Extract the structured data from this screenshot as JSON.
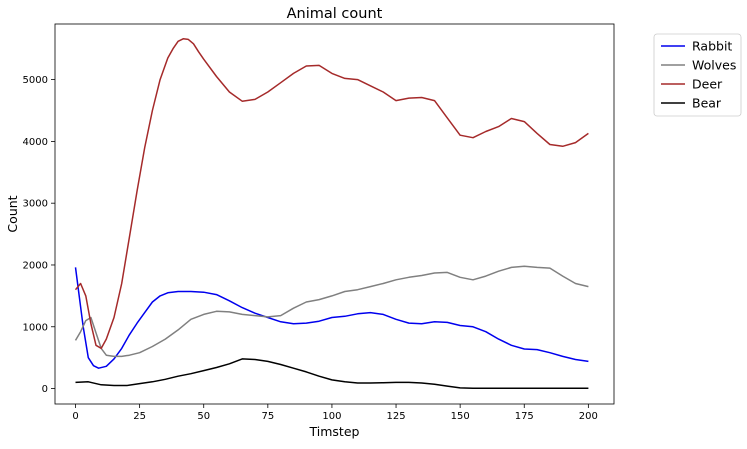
{
  "chart_data": {
    "type": "line",
    "title": "Animal count",
    "xlabel": "Timstep",
    "ylabel": "Count",
    "xlim": [
      -8,
      210
    ],
    "ylim": [
      -250,
      5900
    ],
    "xticks": [
      0,
      25,
      50,
      75,
      100,
      125,
      150,
      175,
      200
    ],
    "xtick_labels": [
      "0",
      "25",
      "50",
      "75",
      "100",
      "125",
      "150",
      "175",
      "200"
    ],
    "yticks": [
      0,
      1000,
      2000,
      3000,
      4000,
      5000
    ],
    "ytick_labels": [
      "0",
      "1000",
      "2000",
      "3000",
      "4000",
      "5000"
    ],
    "grid": false,
    "legend": "outside-top-right",
    "series": [
      {
        "name": "Rabbit",
        "color": "#0000ee",
        "x": [
          0,
          3,
          5,
          7,
          9,
          12,
          15,
          18,
          21,
          24,
          27,
          30,
          33,
          36,
          40,
          45,
          50,
          55,
          60,
          65,
          70,
          75,
          80,
          85,
          90,
          95,
          100,
          105,
          110,
          115,
          120,
          125,
          130,
          135,
          140,
          145,
          150,
          155,
          160,
          165,
          170,
          175,
          180,
          185,
          190,
          195,
          200
        ],
        "y": [
          1960,
          1000,
          500,
          370,
          330,
          360,
          480,
          650,
          870,
          1060,
          1230,
          1400,
          1500,
          1550,
          1570,
          1570,
          1560,
          1520,
          1420,
          1310,
          1220,
          1150,
          1080,
          1050,
          1060,
          1090,
          1150,
          1170,
          1210,
          1230,
          1200,
          1120,
          1060,
          1050,
          1080,
          1070,
          1020,
          1000,
          920,
          800,
          700,
          640,
          630,
          580,
          520,
          470,
          440
        ]
      },
      {
        "name": "Wolves",
        "color": "#808080",
        "x": [
          0,
          2,
          4,
          6,
          8,
          10,
          12,
          15,
          18,
          21,
          25,
          30,
          35,
          40,
          45,
          50,
          55,
          60,
          65,
          70,
          75,
          80,
          85,
          90,
          95,
          100,
          105,
          110,
          115,
          120,
          125,
          130,
          135,
          140,
          145,
          150,
          155,
          160,
          165,
          170,
          175,
          180,
          185,
          190,
          195,
          200
        ],
        "y": [
          780,
          920,
          1100,
          1150,
          900,
          650,
          540,
          520,
          520,
          540,
          580,
          680,
          800,
          950,
          1120,
          1200,
          1250,
          1240,
          1200,
          1180,
          1160,
          1180,
          1300,
          1400,
          1440,
          1500,
          1570,
          1600,
          1650,
          1700,
          1760,
          1800,
          1830,
          1870,
          1880,
          1800,
          1760,
          1820,
          1900,
          1960,
          1980,
          1960,
          1950,
          1820,
          1700,
          1650
        ]
      },
      {
        "name": "Deer",
        "color": "#a52a2a",
        "x": [
          0,
          2,
          4,
          6,
          8,
          10,
          12,
          15,
          18,
          21,
          24,
          27,
          30,
          33,
          36,
          38,
          40,
          42,
          44,
          46,
          48,
          50,
          55,
          60,
          65,
          70,
          75,
          80,
          85,
          90,
          95,
          100,
          105,
          110,
          115,
          120,
          125,
          130,
          135,
          140,
          145,
          150,
          155,
          160,
          165,
          170,
          175,
          180,
          185,
          190,
          195,
          200
        ],
        "y": [
          1600,
          1700,
          1500,
          1050,
          700,
          650,
          800,
          1150,
          1700,
          2450,
          3200,
          3900,
          4500,
          5000,
          5350,
          5500,
          5620,
          5660,
          5650,
          5580,
          5450,
          5330,
          5050,
          4800,
          4650,
          4680,
          4800,
          4950,
          5100,
          5220,
          5230,
          5100,
          5020,
          5000,
          4900,
          4800,
          4660,
          4700,
          4710,
          4660,
          4380,
          4100,
          4060,
          4160,
          4240,
          4370,
          4320,
          4130,
          3950,
          3920,
          3980,
          4130
        ]
      },
      {
        "name": "Bear",
        "color": "#000000",
        "x": [
          0,
          5,
          10,
          15,
          20,
          25,
          30,
          35,
          40,
          45,
          50,
          55,
          60,
          65,
          70,
          75,
          80,
          85,
          90,
          95,
          100,
          105,
          110,
          115,
          120,
          125,
          130,
          135,
          140,
          145,
          150,
          155,
          160,
          170,
          180,
          190,
          200
        ],
        "y": [
          100,
          110,
          60,
          50,
          50,
          80,
          110,
          150,
          200,
          240,
          290,
          340,
          400,
          480,
          470,
          440,
          390,
          330,
          270,
          200,
          140,
          110,
          90,
          90,
          95,
          100,
          100,
          90,
          70,
          40,
          10,
          5,
          5,
          5,
          5,
          5,
          5
        ]
      }
    ]
  }
}
